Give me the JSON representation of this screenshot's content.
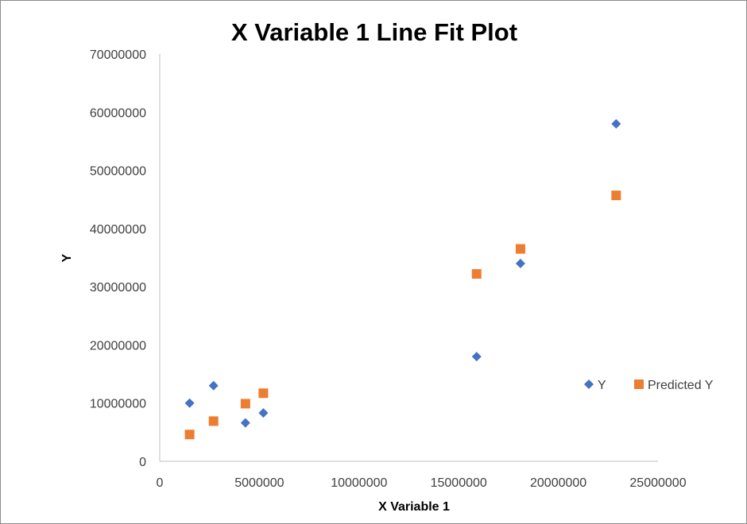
{
  "chart_data": {
    "type": "scatter",
    "title": "X Variable 1 Line Fit  Plot",
    "xlabel": "X Variable 1",
    "ylabel": "Y",
    "xlim": [
      0,
      25000000
    ],
    "ylim": [
      0,
      70000000
    ],
    "x_ticks": [
      "0",
      "5000000",
      "10000000",
      "15000000",
      "20000000",
      "25000000"
    ],
    "y_ticks": [
      "0",
      "10000000",
      "20000000",
      "30000000",
      "40000000",
      "50000000",
      "60000000",
      "70000000"
    ],
    "grid": false,
    "legend_position": "right",
    "series": [
      {
        "name": "Y",
        "marker": "diamond",
        "color": "#4472C4",
        "points": [
          {
            "x": 1500000,
            "y": 10000000
          },
          {
            "x": 2700000,
            "y": 13000000
          },
          {
            "x": 4300000,
            "y": 6600000
          },
          {
            "x": 5200000,
            "y": 8300000
          },
          {
            "x": 15900000,
            "y": 18000000
          },
          {
            "x": 18100000,
            "y": 34000000
          },
          {
            "x": 22900000,
            "y": 58000000
          }
        ]
      },
      {
        "name": "Predicted Y",
        "marker": "square",
        "color": "#ED7D31",
        "points": [
          {
            "x": 1500000,
            "y": 4600000
          },
          {
            "x": 2700000,
            "y": 6900000
          },
          {
            "x": 4300000,
            "y": 9900000
          },
          {
            "x": 5200000,
            "y": 11700000
          },
          {
            "x": 15900000,
            "y": 32200000
          },
          {
            "x": 18100000,
            "y": 36500000
          },
          {
            "x": 22900000,
            "y": 45700000
          }
        ]
      }
    ]
  }
}
